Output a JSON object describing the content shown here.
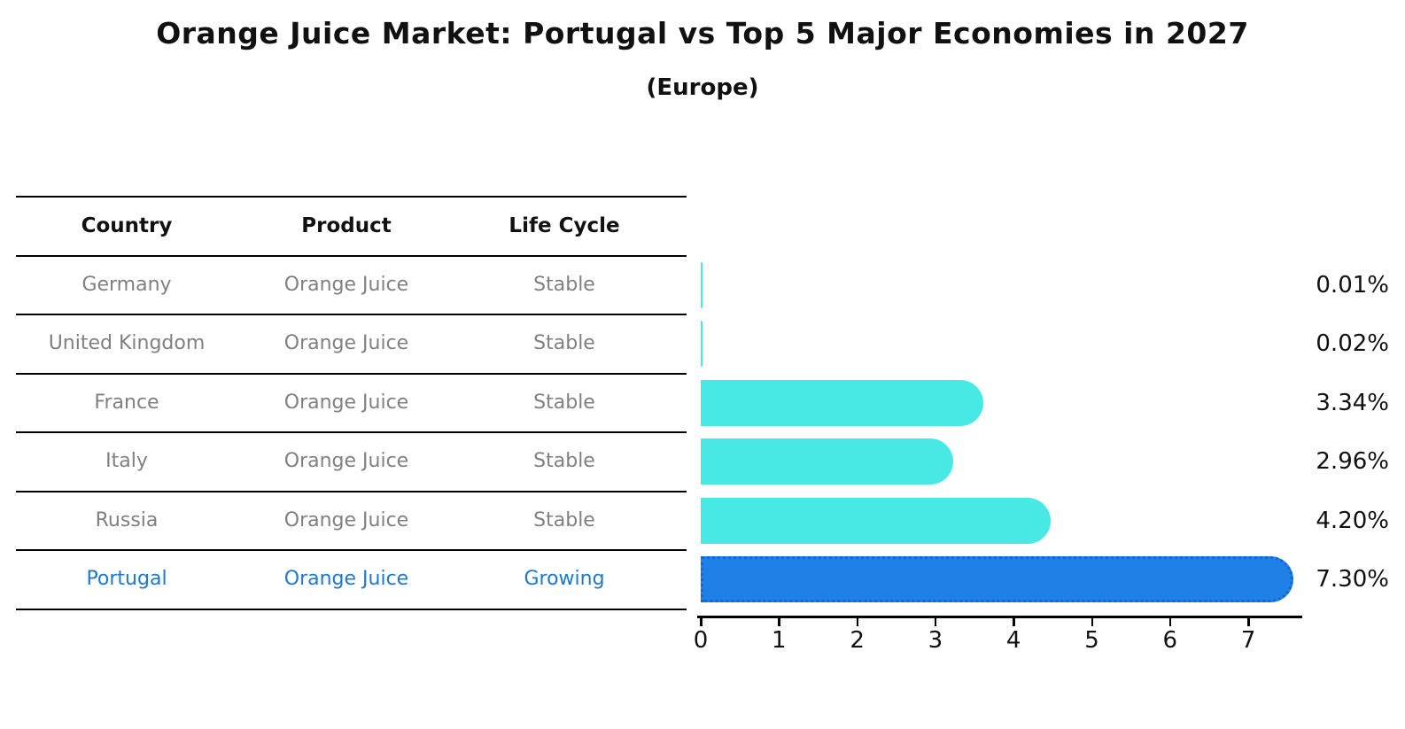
{
  "title": "Orange Juice Market: Portugal vs Top 5 Major Economies in 2027",
  "subtitle": "(Europe)",
  "table": {
    "headers": [
      "Country",
      "Product",
      "Life Cycle"
    ],
    "rows": [
      {
        "country": "Germany",
        "product": "Orange Juice",
        "life_cycle": "Stable",
        "highlighted": false
      },
      {
        "country": "United Kingdom",
        "product": "Orange Juice",
        "life_cycle": "Stable",
        "highlighted": false
      },
      {
        "country": "France",
        "product": "Orange Juice",
        "life_cycle": "Stable",
        "highlighted": false
      },
      {
        "country": "Italy",
        "product": "Orange Juice",
        "life_cycle": "Stable",
        "highlighted": false
      },
      {
        "country": "Russia",
        "product": "Orange Juice",
        "life_cycle": "Stable",
        "highlighted": false
      },
      {
        "country": "Portugal",
        "product": "Orange Juice",
        "life_cycle": "Growing",
        "highlighted": true
      }
    ]
  },
  "chart_data": {
    "type": "bar",
    "orientation": "horizontal",
    "title": "Orange Juice Market: Portugal vs Top 5 Major Economies in 2027",
    "subtitle": "(Europe)",
    "categories": [
      "Germany",
      "United Kingdom",
      "France",
      "Italy",
      "Russia",
      "Portugal"
    ],
    "values": [
      0.01,
      0.02,
      3.34,
      2.96,
      4.2,
      7.3
    ],
    "value_labels": [
      "0.01%",
      "0.02%",
      "3.34%",
      "2.96%",
      "4.20%",
      "7.30%"
    ],
    "x_ticks": [
      0,
      1,
      2,
      3,
      4,
      5,
      6,
      7
    ],
    "xlim": [
      0,
      7.7
    ],
    "grid": false,
    "legend": "none",
    "highlight_index": 5,
    "colors": {
      "bar": "#48e8e4",
      "highlight_bar": "#1f80e8",
      "highlight_edge": "#1467cf",
      "row_text": "#808080",
      "highlight_text": "#1f77d0",
      "header_text": "#111111"
    }
  }
}
